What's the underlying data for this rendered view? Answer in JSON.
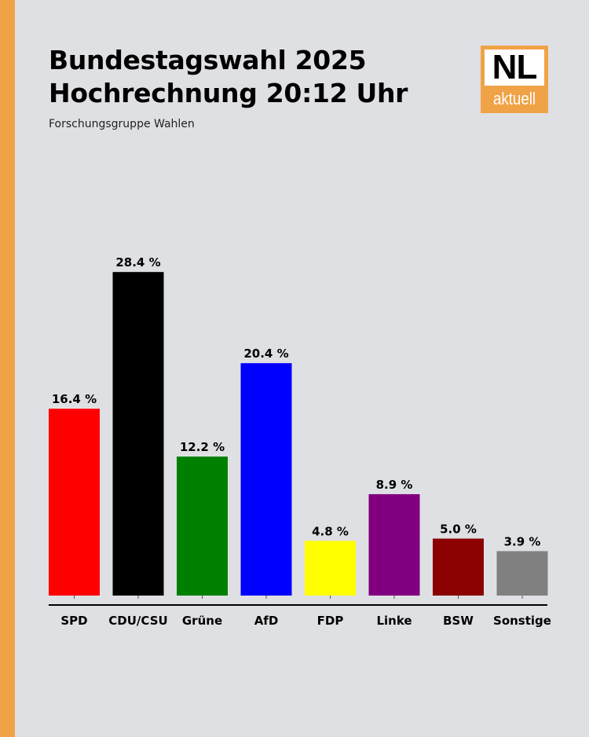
{
  "header": {
    "title_line1": "Bundestagswahl 2025",
    "title_line2": "Hochrechnung 20:12 Uhr",
    "subtitle": "Forschungsgruppe Wahlen"
  },
  "logo": {
    "top_text": "NL",
    "bottom_text": "aktuell",
    "color": "#f0a346"
  },
  "chart_data": {
    "type": "bar",
    "title": "Bundestagswahl 2025 Hochrechnung 20:12 Uhr",
    "subtitle": "Forschungsgruppe Wahlen",
    "xlabel": "",
    "ylabel": "",
    "categories": [
      "SPD",
      "CDU/CSU",
      "Grüne",
      "AfD",
      "FDP",
      "Linke",
      "BSW",
      "Sonstige"
    ],
    "values": [
      16.4,
      28.4,
      12.2,
      20.4,
      4.8,
      8.9,
      5.0,
      3.9
    ],
    "value_labels": [
      "16.4 %",
      "28.4 %",
      "12.2 %",
      "20.4 %",
      "4.8 %",
      "8.9 %",
      "5.0 %",
      "3.9 %"
    ],
    "colors": [
      "#ff0000",
      "#000000",
      "#008000",
      "#0000ff",
      "#ffff00",
      "#800080",
      "#8b0000",
      "#808080"
    ],
    "ylim": [
      0,
      30
    ],
    "grid": false,
    "legend": "none"
  }
}
